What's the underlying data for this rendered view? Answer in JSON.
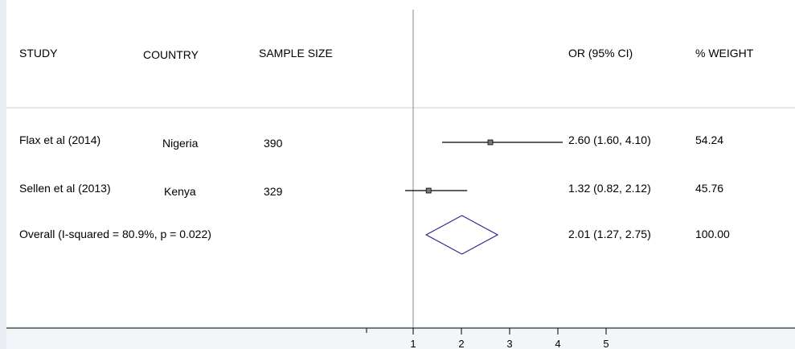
{
  "headers": {
    "study": "STUDY",
    "country": "COUNTRY",
    "sample_size": "SAMPLE SIZE",
    "or_ci": "OR (95% CI)",
    "weight": "% WEIGHT"
  },
  "chart_data": {
    "type": "forest",
    "reference_line": 1,
    "x_ticks": [
      1,
      2,
      3,
      4,
      5
    ],
    "x_tick_labels": [
      "1",
      "2",
      "3",
      "4",
      "5"
    ],
    "studies": [
      {
        "study": "Flax et al (2014)",
        "country": "Nigeria",
        "sample_size": "390",
        "or": 2.6,
        "lower": 1.6,
        "upper": 4.1,
        "or_ci_label": "2.60 (1.60, 4.10)",
        "weight": "54.24"
      },
      {
        "study": "Sellen et al (2013)",
        "country": "Kenya",
        "sample_size": "329",
        "or": 1.32,
        "lower": 0.82,
        "upper": 2.12,
        "or_ci_label": "1.32 (0.82, 2.12)",
        "weight": "45.76"
      }
    ],
    "overall": {
      "label": "Overall  (I-squared = 80.9%, p = 0.022)",
      "or": 2.01,
      "lower": 1.27,
      "upper": 2.75,
      "or_ci_label": "2.01 (1.27, 2.75)",
      "weight": "100.00"
    },
    "colors": {
      "diamond": "#2a2a8c",
      "lines": "#000000",
      "panel": "#ffffff",
      "background": "#f3f6f9"
    }
  }
}
